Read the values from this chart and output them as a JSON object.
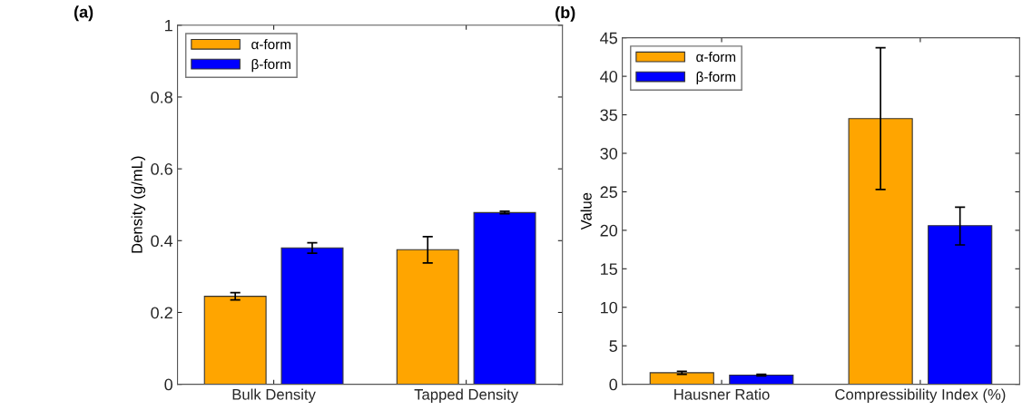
{
  "chart_data": [
    {
      "type": "bar",
      "title": "(a)",
      "ylabel": "Density (g/mL)",
      "categories": [
        "Bulk Density",
        "Tapped Density"
      ],
      "ylim": [
        0,
        1
      ],
      "yticks": [
        0,
        0.2,
        0.4,
        0.6,
        0.8,
        1
      ],
      "legend": "top left",
      "grid": false,
      "series": [
        {
          "name": "α-form",
          "color": "#ffa500",
          "values": [
            0.245,
            0.375
          ],
          "errors": [
            [
              0.235,
              0.255
            ],
            [
              0.338,
              0.411
            ]
          ]
        },
        {
          "name": "β-form",
          "color": "#0000ff",
          "values": [
            0.38,
            0.478
          ],
          "errors": [
            [
              0.365,
              0.394
            ],
            [
              0.475,
              0.482
            ]
          ]
        }
      ]
    },
    {
      "type": "bar",
      "title": "(b)",
      "ylabel": "Value",
      "categories": [
        "Hausner Ratio",
        "Compressibility Index (%)"
      ],
      "ylim": [
        0,
        45
      ],
      "yticks": [
        0,
        5,
        10,
        15,
        20,
        25,
        30,
        35,
        40,
        45
      ],
      "legend": "top left",
      "grid": false,
      "series": [
        {
          "name": "α-form",
          "color": "#ffa500",
          "values": [
            1.5,
            34.5
          ],
          "errors": [
            [
              1.3,
              1.7
            ],
            [
              25.3,
              43.7
            ]
          ]
        },
        {
          "name": "β-form",
          "color": "#0000ff",
          "values": [
            1.2,
            20.6
          ],
          "errors": [
            [
              1.1,
              1.3
            ],
            [
              18.1,
              23.0
            ]
          ]
        }
      ]
    }
  ]
}
